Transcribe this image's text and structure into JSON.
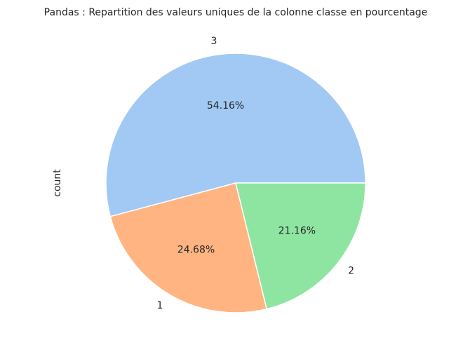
{
  "chart_data": {
    "type": "pie",
    "title": "Pandas : Repartition des valeurs uniques de la colonne classe en pourcentage",
    "ylabel": "count",
    "categories": [
      "3",
      "1",
      "2"
    ],
    "values": [
      54.16,
      24.68,
      21.16
    ],
    "value_labels": [
      "54.16%",
      "24.68%",
      "21.16%"
    ],
    "colors": [
      "#a1c9f4",
      "#ffb482",
      "#8de5a1"
    ]
  }
}
